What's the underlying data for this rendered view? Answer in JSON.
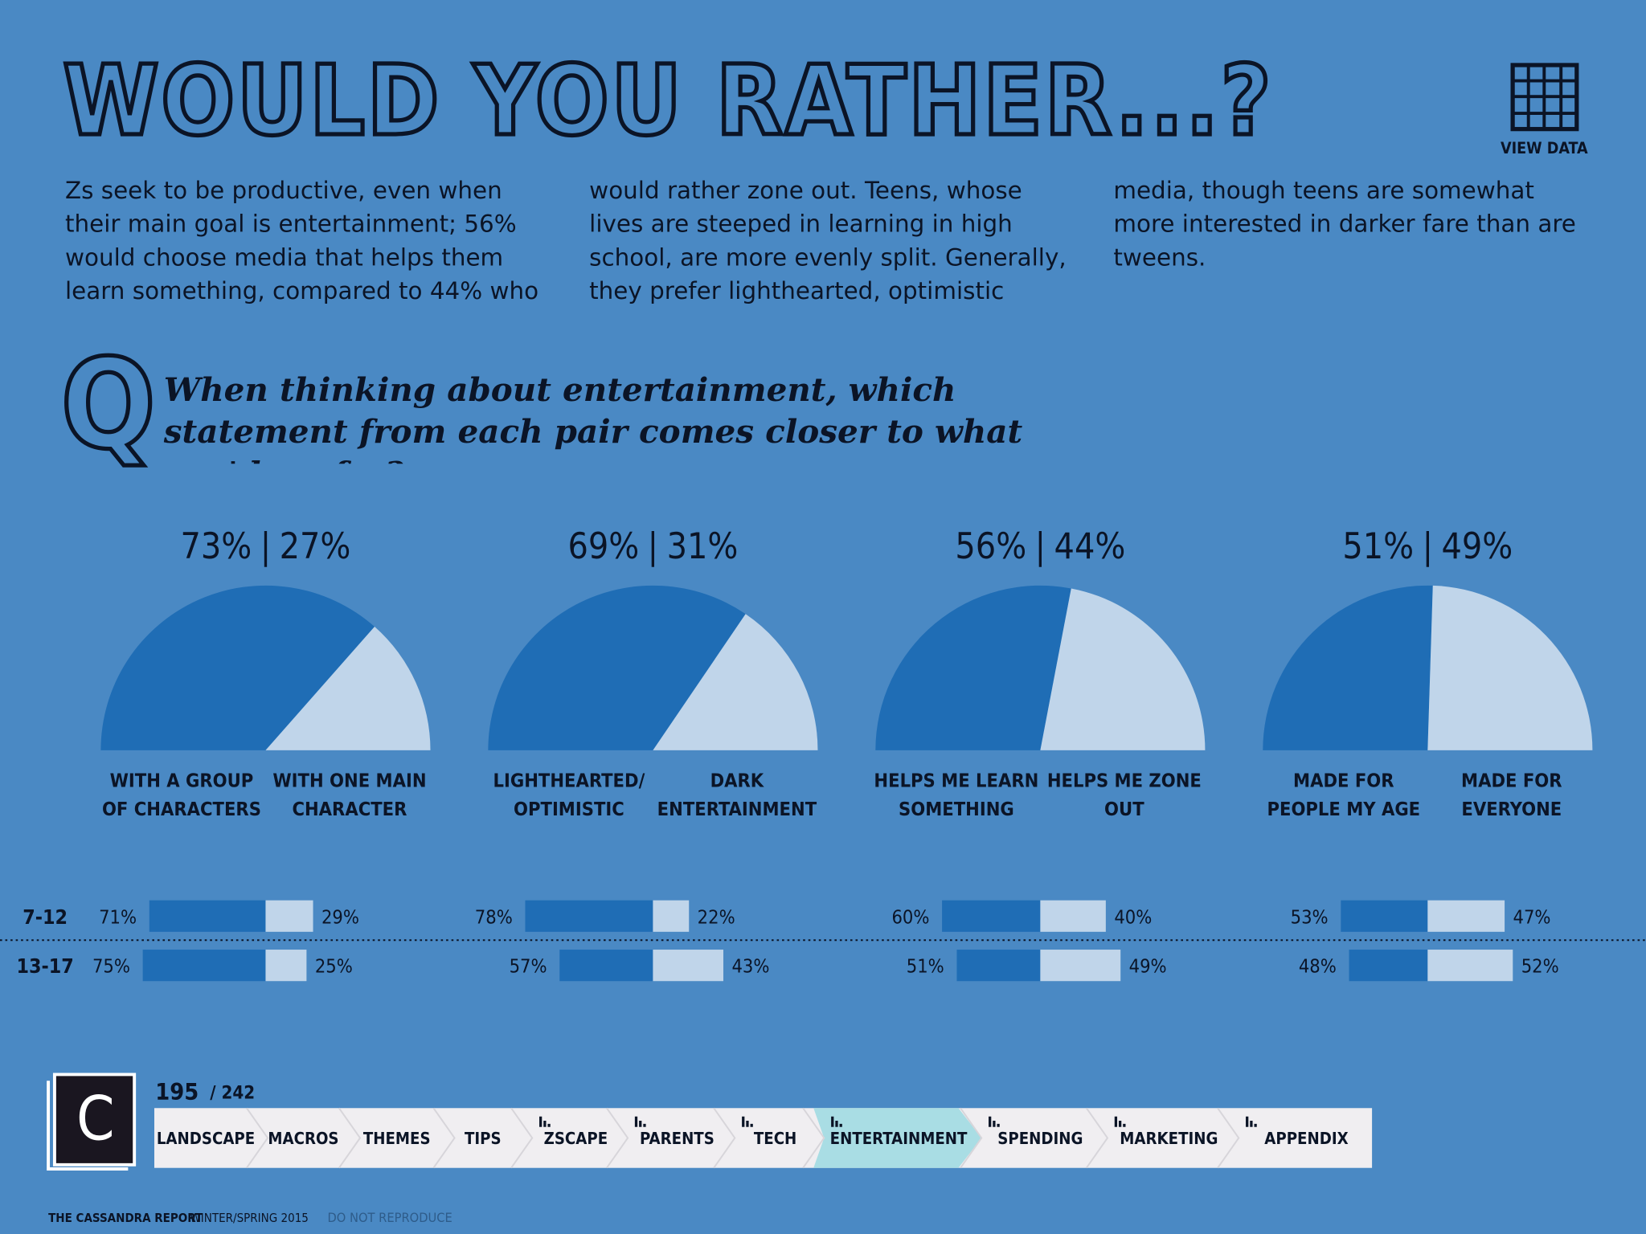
{
  "header": {
    "title": "WOULD YOU RATHER...?",
    "view_data": "VIEW DATA"
  },
  "body_text": "Zs seek to be productive, even when their main goal is entertainment; 56% would choose media that helps them learn something, compared to 44% who would rather zone out. Teens, whose lives are steeped in learning in high school, are more evenly split. Generally, they prefer lighthearted, optimistic media, though teens are somewhat more interested in darker fare than are tweens.",
  "question": {
    "icon": "Q",
    "text": "When thinking about entertainment, which statement from each pair comes closer to what you'd prefer?"
  },
  "age_groups": [
    "7-12",
    "13-17"
  ],
  "chart_data": [
    {
      "type": "semi-pie",
      "categories": [
        "WITH A GROUP OF CHARACTERS",
        "WITH ONE MAIN CHARACTER"
      ],
      "values": [
        73,
        27
      ],
      "value_labels": [
        "73%",
        "27%"
      ],
      "colors": [
        "#1f6db5",
        "#c0d5ea"
      ],
      "groups": [
        {
          "values": [
            71,
            29
          ],
          "value_labels": [
            "71%",
            "29%"
          ]
        },
        {
          "values": [
            75,
            25
          ],
          "value_labels": [
            "75%",
            "25%"
          ]
        }
      ]
    },
    {
      "type": "semi-pie",
      "categories": [
        "LIGHTHEARTED/ OPTIMISTIC",
        "DARK ENTERTAINMENT"
      ],
      "values": [
        69,
        31
      ],
      "value_labels": [
        "69%",
        "31%"
      ],
      "colors": [
        "#1f6db5",
        "#c0d5ea"
      ],
      "groups": [
        {
          "values": [
            78,
            22
          ],
          "value_labels": [
            "78%",
            "22%"
          ]
        },
        {
          "values": [
            57,
            43
          ],
          "value_labels": [
            "57%",
            "43%"
          ]
        }
      ]
    },
    {
      "type": "semi-pie",
      "categories": [
        "HELPS ME LEARN SOMETHING",
        "HELPS ME ZONE OUT"
      ],
      "values": [
        56,
        44
      ],
      "value_labels": [
        "56%",
        "44%"
      ],
      "colors": [
        "#1f6db5",
        "#c0d5ea"
      ],
      "groups": [
        {
          "values": [
            60,
            40
          ],
          "value_labels": [
            "60%",
            "40%"
          ]
        },
        {
          "values": [
            51,
            49
          ],
          "value_labels": [
            "51%",
            "49%"
          ]
        }
      ]
    },
    {
      "type": "semi-pie",
      "categories": [
        "MADE FOR PEOPLE MY AGE",
        "MADE FOR EVERYONE"
      ],
      "values": [
        51,
        49
      ],
      "value_labels": [
        "51%",
        "49%"
      ],
      "colors": [
        "#1f6db5",
        "#c0d5ea"
      ],
      "groups": [
        {
          "values": [
            53,
            47
          ],
          "value_labels": [
            "53%",
            "47%"
          ]
        },
        {
          "values": [
            48,
            52
          ],
          "value_labels": [
            "48%",
            "52%"
          ]
        }
      ]
    }
  ],
  "nav": {
    "logo": "C",
    "page": "195",
    "total": "/ 242",
    "active_tab": 7,
    "tabs": [
      "LANDSCAPE",
      "MACROS",
      "THEMES",
      "TIPS",
      "ZSCAPE",
      "PARENTS",
      "TECH",
      "ENTERTAINMENT",
      "SPENDING",
      "MARKETING",
      "APPENDIX"
    ]
  },
  "footer": {
    "publication": "THE CASSANDRA REPORT",
    "edition": "WINTER/SPRING 2015",
    "notice": "DO NOT REPRODUCE"
  }
}
